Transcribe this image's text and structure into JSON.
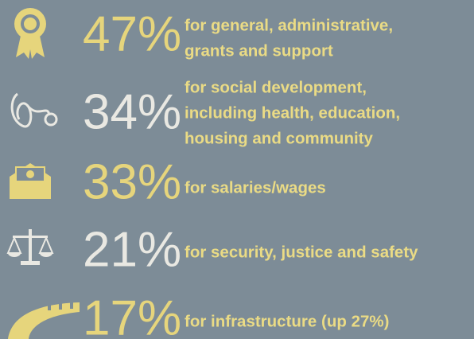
{
  "items": [
    {
      "percent": "47%",
      "lines": [
        "for general, administrative,",
        "grants and support"
      ]
    },
    {
      "percent": "34%",
      "lines": [
        "for social development,",
        "including health, education,",
        "housing and community"
      ]
    },
    {
      "percent": "33%",
      "lines": [
        "for salaries/wages"
      ]
    },
    {
      "percent": "21%",
      "lines": [
        "for security, justice and safety"
      ]
    },
    {
      "percent": "17%",
      "lines": [
        "for infrastructure (up 27%)"
      ]
    }
  ]
}
